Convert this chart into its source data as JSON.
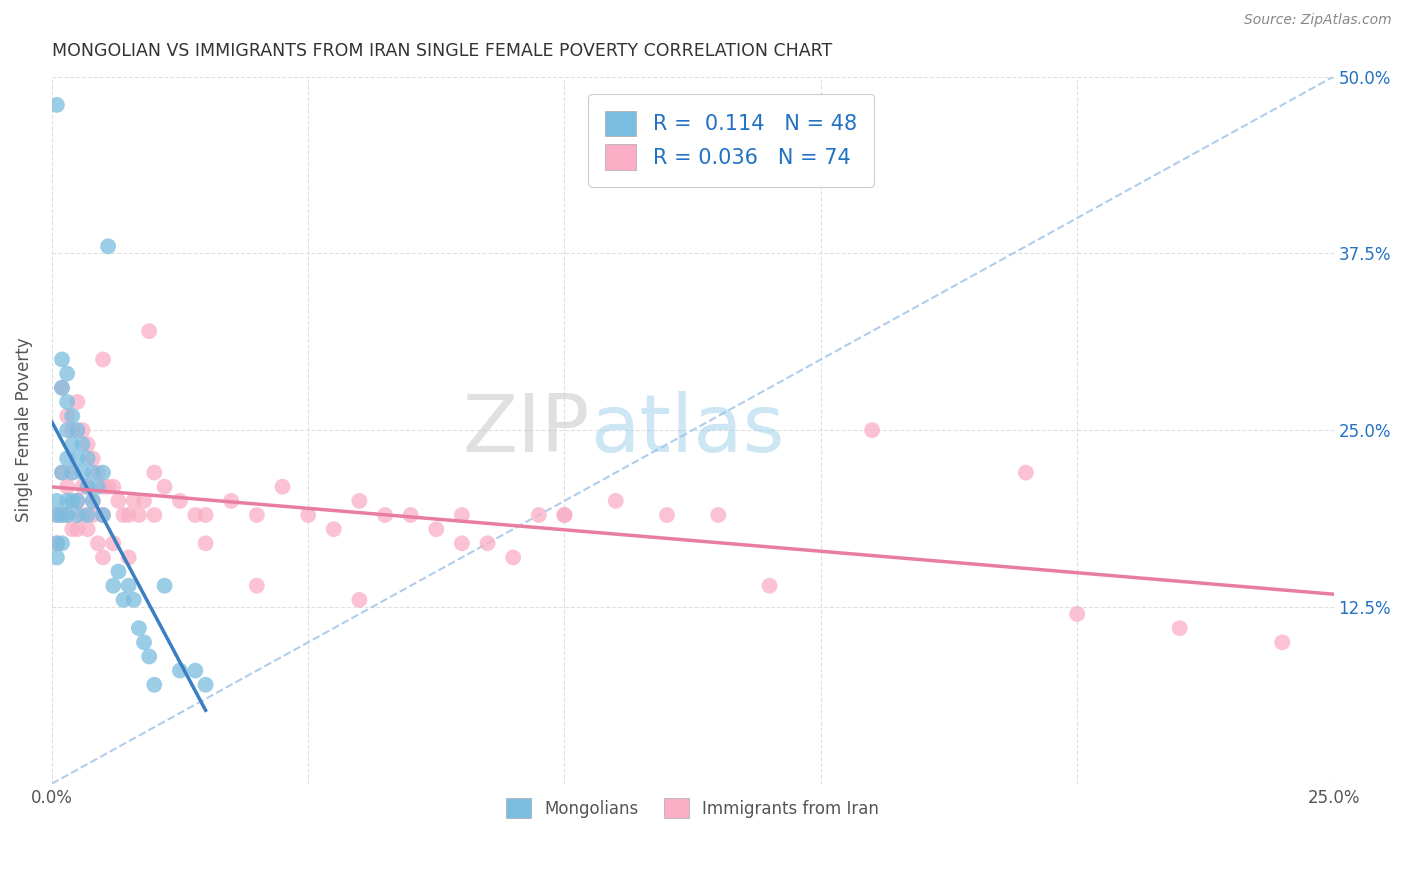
{
  "title": "MONGOLIAN VS IMMIGRANTS FROM IRAN SINGLE FEMALE POVERTY CORRELATION CHART",
  "source": "Source: ZipAtlas.com",
  "ylabel": "Single Female Poverty",
  "xlim": [
    0.0,
    0.25
  ],
  "ylim": [
    0.0,
    0.5
  ],
  "mongolian_color": "#7bbde0",
  "iran_color": "#f9aec5",
  "mongolian_line_color": "#3a7fc1",
  "iran_line_color": "#e87da0",
  "dashed_line_color": "#a8c8e8",
  "mongolian_R": 0.114,
  "mongolian_N": 48,
  "iran_R": 0.036,
  "iran_N": 74,
  "legend_text_color": "#2272c3",
  "axis_text_color": "#2272c3",
  "right_tick_color": "#2272c3",
  "title_color": "#333333",
  "source_color": "#888888",
  "background_color": "#ffffff",
  "grid_color": "#dddddd",
  "mongolian_x": [
    0.001,
    0.001,
    0.001,
    0.002,
    0.002,
    0.002,
    0.003,
    0.003,
    0.003,
    0.003,
    0.003,
    0.004,
    0.004,
    0.004,
    0.005,
    0.005,
    0.005,
    0.006,
    0.006,
    0.007,
    0.007,
    0.007,
    0.008,
    0.008,
    0.009,
    0.01,
    0.01,
    0.011,
    0.012,
    0.013,
    0.014,
    0.015,
    0.016,
    0.017,
    0.018,
    0.019,
    0.02,
    0.022,
    0.025,
    0.028,
    0.03,
    0.001,
    0.001,
    0.002,
    0.003,
    0.004,
    0.005,
    0.002
  ],
  "mongolian_y": [
    0.48,
    0.2,
    0.17,
    0.3,
    0.28,
    0.22,
    0.29,
    0.27,
    0.25,
    0.23,
    0.2,
    0.26,
    0.24,
    0.22,
    0.25,
    0.23,
    0.2,
    0.24,
    0.22,
    0.23,
    0.21,
    0.19,
    0.22,
    0.2,
    0.21,
    0.22,
    0.19,
    0.38,
    0.14,
    0.15,
    0.13,
    0.14,
    0.13,
    0.11,
    0.1,
    0.09,
    0.07,
    0.14,
    0.08,
    0.08,
    0.07,
    0.19,
    0.16,
    0.19,
    0.19,
    0.2,
    0.19,
    0.17
  ],
  "iran_x": [
    0.001,
    0.001,
    0.002,
    0.002,
    0.003,
    0.003,
    0.004,
    0.004,
    0.005,
    0.005,
    0.006,
    0.006,
    0.007,
    0.007,
    0.008,
    0.008,
    0.009,
    0.01,
    0.01,
    0.011,
    0.012,
    0.013,
    0.014,
    0.015,
    0.016,
    0.017,
    0.018,
    0.019,
    0.02,
    0.022,
    0.025,
    0.028,
    0.03,
    0.035,
    0.04,
    0.045,
    0.05,
    0.055,
    0.06,
    0.065,
    0.07,
    0.075,
    0.08,
    0.085,
    0.09,
    0.095,
    0.1,
    0.11,
    0.12,
    0.13,
    0.002,
    0.003,
    0.004,
    0.005,
    0.006,
    0.007,
    0.008,
    0.009,
    0.01,
    0.012,
    0.015,
    0.02,
    0.03,
    0.04,
    0.06,
    0.08,
    0.1,
    0.14,
    0.16,
    0.19,
    0.2,
    0.22,
    0.24,
    0.01
  ],
  "iran_y": [
    0.19,
    0.17,
    0.28,
    0.22,
    0.26,
    0.21,
    0.25,
    0.22,
    0.27,
    0.2,
    0.25,
    0.21,
    0.24,
    0.21,
    0.23,
    0.2,
    0.22,
    0.21,
    0.19,
    0.21,
    0.21,
    0.2,
    0.19,
    0.19,
    0.2,
    0.19,
    0.2,
    0.32,
    0.22,
    0.21,
    0.2,
    0.19,
    0.19,
    0.2,
    0.19,
    0.21,
    0.19,
    0.18,
    0.2,
    0.19,
    0.19,
    0.18,
    0.19,
    0.17,
    0.16,
    0.19,
    0.19,
    0.2,
    0.19,
    0.19,
    0.19,
    0.19,
    0.18,
    0.18,
    0.19,
    0.18,
    0.19,
    0.17,
    0.16,
    0.17,
    0.16,
    0.19,
    0.17,
    0.14,
    0.13,
    0.17,
    0.19,
    0.14,
    0.25,
    0.22,
    0.12,
    0.11,
    0.1,
    0.3
  ]
}
